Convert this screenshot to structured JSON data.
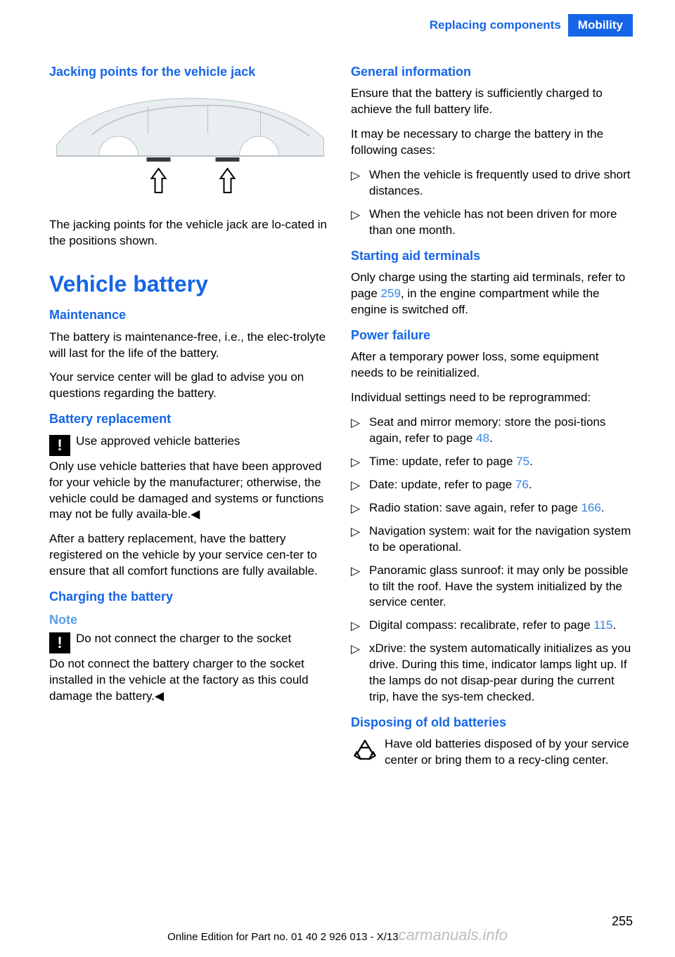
{
  "header": {
    "left": "Replacing components",
    "right": "Mobility"
  },
  "leftCol": {
    "jackingTitle": "Jacking points for the vehicle jack",
    "jackingCaption": "The jacking points for the vehicle jack are lo‐cated in the positions shown.",
    "vehBatteryTitle": "Vehicle battery",
    "maintTitle": "Maintenance",
    "maintP1": "The battery is maintenance-free, i.e., the elec‐trolyte will last for the life of the battery.",
    "maintP2": "Your service center will be glad to advise you on questions regarding the battery.",
    "battReplTitle": "Battery replacement",
    "warn1Title": "Use approved vehicle batteries",
    "warn1Body": "Only use vehicle batteries that have been approved for your vehicle by the manufacturer; otherwise, the vehicle could be damaged and systems or functions may not be fully availa‐ble.◀",
    "battReplP": "After a battery replacement, have the battery registered on the vehicle by your service cen‐ter to ensure that all comfort functions are fully available.",
    "chargingTitle": "Charging the battery",
    "noteTitle": "Note",
    "warn2Title": "Do not connect the charger to the socket",
    "warn2Body": "Do not connect the battery charger to the socket installed in the vehicle at the factory as this could damage the battery.◀"
  },
  "rightCol": {
    "genInfoTitle": "General information",
    "genInfoP1": "Ensure that the battery is sufficiently charged to achieve the full battery life.",
    "genInfoP2": "It may be necessary to charge the battery in the following cases:",
    "genList": [
      "When the vehicle is frequently used to drive short distances.",
      "When the vehicle has not been driven for more than one month."
    ],
    "startAidTitle": "Starting aid terminals",
    "startAidPrefix": "Only charge using the starting aid terminals, refer to page ",
    "startAidLink": "259",
    "startAidSuffix": ", in the engine compartment while the engine is switched off.",
    "powerFailTitle": "Power failure",
    "powerFailP1": "After a temporary power loss, some equipment needs to be reinitialized.",
    "powerFailP2": "Individual settings need to be reprogrammed:",
    "pfList": [
      {
        "pre": "Seat and mirror memory: store the posi‐tions again, refer to page ",
        "link": "48",
        "post": "."
      },
      {
        "pre": "Time: update, refer to page ",
        "link": "75",
        "post": "."
      },
      {
        "pre": "Date: update, refer to page ",
        "link": "76",
        "post": "."
      },
      {
        "pre": "Radio station: save again, refer to page ",
        "link": "166",
        "post": "."
      },
      {
        "pre": "Navigation system: wait for the navigation system to be operational.",
        "link": "",
        "post": ""
      },
      {
        "pre": "Panoramic glass sunroof: it may only be possible to tilt the roof. Have the system initialized by the service center.",
        "link": "",
        "post": ""
      },
      {
        "pre": "Digital compass: recalibrate, refer to page ",
        "link": "115",
        "post": "."
      },
      {
        "pre": "xDrive: the system automatically initializes as you drive. During this time, indicator lamps light up. If the lamps do not disap‐pear during the current trip, have the sys‐tem checked.",
        "link": "",
        "post": ""
      }
    ],
    "disposeTitle": "Disposing of old batteries",
    "disposeBody": "Have old batteries disposed of by your service center or bring them to a recy‐cling center."
  },
  "pageNum": "255",
  "footerLeft": "Online Edition for Part no. 01 40 2 926 013 - X/13",
  "watermark": "carmanuals.info",
  "colors": {
    "brandBlue": "#1565e6",
    "subBlue": "#5a9de8",
    "linkBlue": "#3584e4",
    "carBody": "#e9eef1",
    "carShadow": "#b8c2c7",
    "jackPad": "#3a3a3a"
  }
}
